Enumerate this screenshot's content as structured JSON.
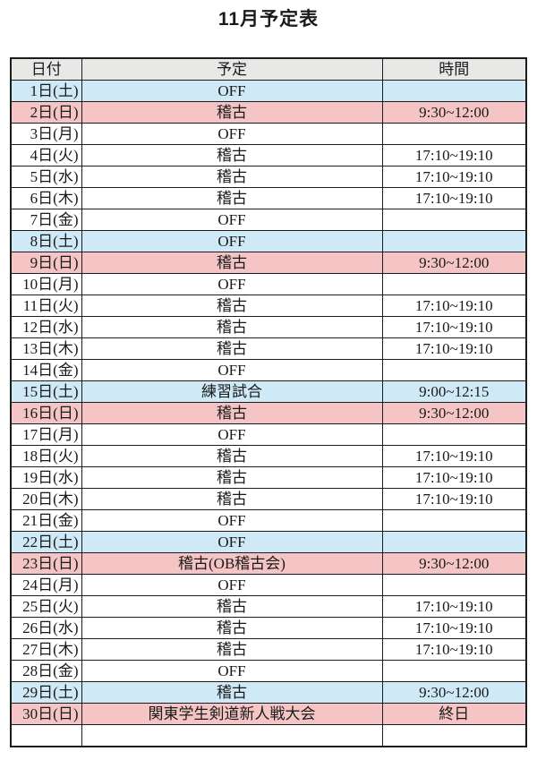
{
  "title": "11月予定表",
  "colors": {
    "header_bg": "#e8e8e7",
    "saturday_row_bg": "#cfe9f7",
    "sunday_row_bg": "#f5c5c6",
    "border": "#1c1c1c",
    "text": "#1a1a1a"
  },
  "table": {
    "headers": [
      "日付",
      "予定",
      "時間"
    ],
    "rows": [
      {
        "date": "1日(土)",
        "plan": "OFF",
        "time": "",
        "type": "sat"
      },
      {
        "date": "2日(日)",
        "plan": "稽古",
        "time": "9:30~12:00",
        "type": "sun"
      },
      {
        "date": "3日(月)",
        "plan": "OFF",
        "time": "",
        "type": "weekday"
      },
      {
        "date": "4日(火)",
        "plan": "稽古",
        "time": "17:10~19:10",
        "type": "weekday"
      },
      {
        "date": "5日(水)",
        "plan": "稽古",
        "time": "17:10~19:10",
        "type": "weekday"
      },
      {
        "date": "6日(木)",
        "plan": "稽古",
        "time": "17:10~19:10",
        "type": "weekday"
      },
      {
        "date": "7日(金)",
        "plan": "OFF",
        "time": "",
        "type": "weekday"
      },
      {
        "date": "8日(土)",
        "plan": "OFF",
        "time": "",
        "type": "sat"
      },
      {
        "date": "9日(日)",
        "plan": "稽古",
        "time": "9:30~12:00",
        "type": "sun"
      },
      {
        "date": "10日(月)",
        "plan": "OFF",
        "time": "",
        "type": "weekday"
      },
      {
        "date": "11日(火)",
        "plan": "稽古",
        "time": "17:10~19:10",
        "type": "weekday"
      },
      {
        "date": "12日(水)",
        "plan": "稽古",
        "time": "17:10~19:10",
        "type": "weekday"
      },
      {
        "date": "13日(木)",
        "plan": "稽古",
        "time": "17:10~19:10",
        "type": "weekday"
      },
      {
        "date": "14日(金)",
        "plan": "OFF",
        "time": "",
        "type": "weekday"
      },
      {
        "date": "15日(土)",
        "plan": "練習試合",
        "time": "9:00~12:15",
        "type": "sat"
      },
      {
        "date": "16日(日)",
        "plan": "稽古",
        "time": "9:30~12:00",
        "type": "sun"
      },
      {
        "date": "17日(月)",
        "plan": "OFF",
        "time": "",
        "type": "weekday"
      },
      {
        "date": "18日(火)",
        "plan": "稽古",
        "time": "17:10~19:10",
        "type": "weekday"
      },
      {
        "date": "19日(水)",
        "plan": "稽古",
        "time": "17:10~19:10",
        "type": "weekday"
      },
      {
        "date": "20日(木)",
        "plan": "稽古",
        "time": "17:10~19:10",
        "type": "weekday"
      },
      {
        "date": "21日(金)",
        "plan": "OFF",
        "time": "",
        "type": "weekday"
      },
      {
        "date": "22日(土)",
        "plan": "OFF",
        "time": "",
        "type": "sat"
      },
      {
        "date": "23日(日)",
        "plan": "稽古(OB稽古会)",
        "time": "9:30~12:00",
        "type": "sun"
      },
      {
        "date": "24日(月)",
        "plan": "OFF",
        "time": "",
        "type": "weekday"
      },
      {
        "date": "25日(火)",
        "plan": "稽古",
        "time": "17:10~19:10",
        "type": "weekday"
      },
      {
        "date": "26日(水)",
        "plan": "稽古",
        "time": "17:10~19:10",
        "type": "weekday"
      },
      {
        "date": "27日(木)",
        "plan": "稽古",
        "time": "17:10~19:10",
        "type": "weekday"
      },
      {
        "date": "28日(金)",
        "plan": "OFF",
        "time": "",
        "type": "weekday"
      },
      {
        "date": "29日(土)",
        "plan": "稽古",
        "time": "9:30~12:00",
        "type": "sat"
      },
      {
        "date": "30日(日)",
        "plan": "関東学生剣道新人戦大会",
        "time": "終日",
        "type": "sun"
      },
      {
        "date": "",
        "plan": "",
        "time": "",
        "type": "blank"
      }
    ]
  }
}
